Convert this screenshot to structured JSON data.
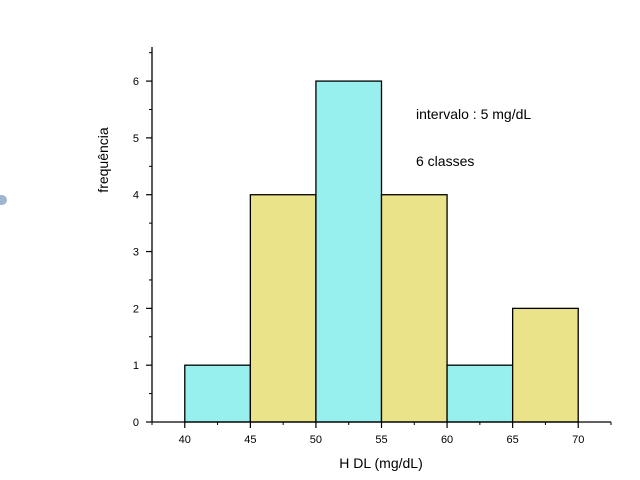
{
  "chart_data": {
    "type": "bar",
    "title": "",
    "xlabel": "H DL (mg/dL)",
    "ylabel": "frequência",
    "xlim": [
      37.5,
      72.5
    ],
    "ylim": [
      0,
      6.6
    ],
    "xticks": [
      40,
      45,
      50,
      55,
      60,
      65,
      70
    ],
    "yticks": [
      0,
      1,
      2,
      3,
      4,
      5,
      6
    ],
    "bins": [
      {
        "start": 40,
        "end": 45,
        "value": 1,
        "color": "#98f0ee"
      },
      {
        "start": 45,
        "end": 50,
        "value": 4,
        "color": "#ebe38a"
      },
      {
        "start": 50,
        "end": 55,
        "value": 6,
        "color": "#98f0ee"
      },
      {
        "start": 55,
        "end": 60,
        "value": 4,
        "color": "#ebe38a"
      },
      {
        "start": 60,
        "end": 65,
        "value": 1,
        "color": "#98f0ee"
      },
      {
        "start": 65,
        "end": 70,
        "value": 2,
        "color": "#ebe38a"
      }
    ],
    "annotations": [
      "intervalo : 5 mg/dL",
      "6 classes"
    ],
    "grid": false,
    "legend": "none"
  }
}
